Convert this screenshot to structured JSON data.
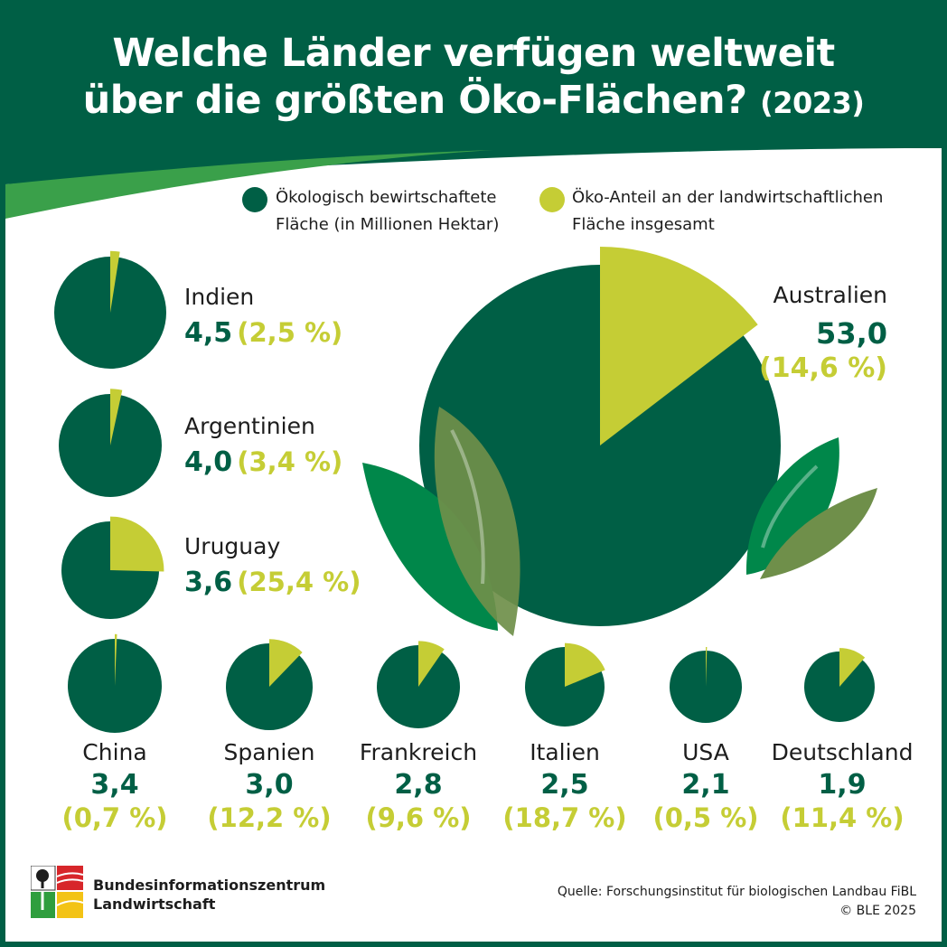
{
  "title": {
    "line1": "Welche Länder verfügen weltweit",
    "line2": "über die größten Öko-Flächen?",
    "year": "(2023)"
  },
  "legend": {
    "area_label_1": "Ökologisch bewirtschaftete",
    "area_label_2": "Fläche (in Millionen Hektar)",
    "share_label_1": "Öko-Anteil an der landwirtschaftlichen",
    "share_label_2": "Fläche insgesamt"
  },
  "colors": {
    "area": "#005f45",
    "share": "#c5cd35",
    "leaf_dark": "#00874a",
    "leaf_olive": "#6f8f4a"
  },
  "chart_data": {
    "type": "pie",
    "title": "Welche Länder verfügen weltweit über die größten Öko-Flächen? (2023)",
    "unit_area": "Millionen Hektar",
    "countries": [
      {
        "name": "Australien",
        "area": 53.0,
        "area_label": "53,0",
        "share": 14.6,
        "share_label": "(14,6 %)"
      },
      {
        "name": "Indien",
        "area": 4.5,
        "area_label": "4,5",
        "share": 2.5,
        "share_label": "(2,5 %)"
      },
      {
        "name": "Argentinien",
        "area": 4.0,
        "area_label": "4,0",
        "share": 3.4,
        "share_label": "(3,4 %)"
      },
      {
        "name": "Uruguay",
        "area": 3.6,
        "area_label": "3,6",
        "share": 25.4,
        "share_label": "(25,4 %)"
      },
      {
        "name": "China",
        "area": 3.4,
        "area_label": "3,4",
        "share": 0.7,
        "share_label": "(0,7 %)"
      },
      {
        "name": "Spanien",
        "area": 3.0,
        "area_label": "3,0",
        "share": 12.2,
        "share_label": "(12,2 %)"
      },
      {
        "name": "Frankreich",
        "area": 2.8,
        "area_label": "2,8",
        "share": 9.6,
        "share_label": "(9,6 %)"
      },
      {
        "name": "Italien",
        "area": 2.5,
        "area_label": "2,5",
        "share": 18.7,
        "share_label": "(18,7 %)"
      },
      {
        "name": "USA",
        "area": 2.1,
        "area_label": "2,1",
        "share": 0.5,
        "share_label": "(0,5 %)"
      },
      {
        "name": "Deutschland",
        "area": 1.9,
        "area_label": "1,9",
        "share": 11.4,
        "share_label": "(11,4 %)"
      }
    ]
  },
  "footer": {
    "org_line1": "Bundesinformationszentrum",
    "org_line2": "Landwirtschaft",
    "source": "Quelle: Forschungsinstitut für biologischen Landbau FiBL",
    "copyright": "© BLE 2025"
  }
}
